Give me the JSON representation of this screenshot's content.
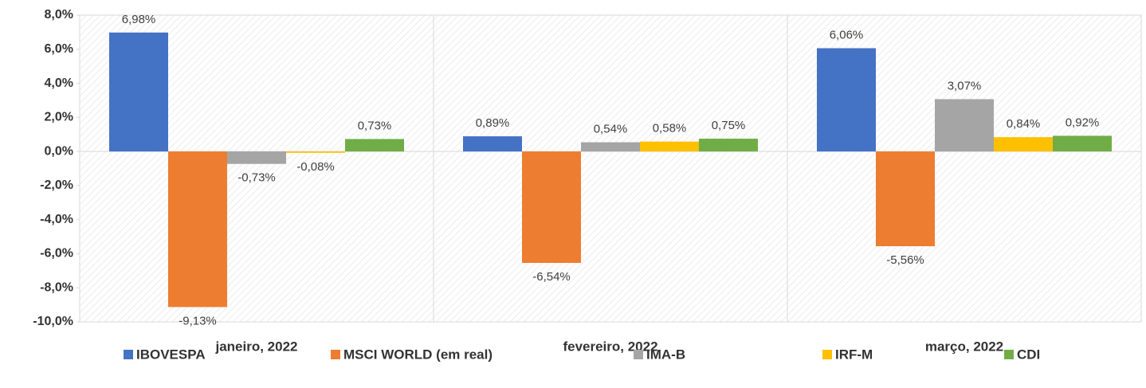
{
  "chart_data": {
    "type": "bar",
    "categories": [
      "janeiro, 2022",
      "fevereiro, 2022",
      "março, 2022"
    ],
    "series": [
      {
        "name": "IBOVESPA",
        "color": "#4472c4",
        "values": [
          6.98,
          0.89,
          6.06
        ],
        "value_labels": [
          "6,98%",
          "0,89%",
          "6,06%"
        ]
      },
      {
        "name": "MSCI WORLD (em real)",
        "color": "#ed7d31",
        "values": [
          -9.13,
          -6.54,
          -5.56
        ],
        "value_labels": [
          "-9,13%",
          "-6,54%",
          "-5,56%"
        ]
      },
      {
        "name": "IMA-B",
        "color": "#a5a5a5",
        "values": [
          -0.73,
          0.54,
          3.07
        ],
        "value_labels": [
          "-0,73%",
          "0,54%",
          "3,07%"
        ]
      },
      {
        "name": "IRF-M",
        "color": "#ffc000",
        "values": [
          -0.08,
          0.58,
          0.84
        ],
        "value_labels": [
          "-0,08%",
          "0,58%",
          "0,84%"
        ]
      },
      {
        "name": "CDI",
        "color": "#70ad47",
        "values": [
          0.73,
          0.75,
          0.92
        ],
        "value_labels": [
          "0,73%",
          "0,75%",
          "0,92%"
        ]
      }
    ],
    "ylim": [
      -10,
      8
    ],
    "yticks": [
      {
        "value": -10,
        "label": "-10,0%"
      },
      {
        "value": -8,
        "label": "-8,0%"
      },
      {
        "value": -6,
        "label": "-6,0%"
      },
      {
        "value": -4,
        "label": "-4,0%"
      },
      {
        "value": -2,
        "label": "-2,0%"
      },
      {
        "value": 0,
        "label": "0,0%"
      },
      {
        "value": 2,
        "label": "2,0%"
      },
      {
        "value": 4,
        "label": "4,0%"
      },
      {
        "value": 6,
        "label": "6,0%"
      },
      {
        "value": 8,
        "label": "8,0%"
      }
    ],
    "legend": "bottom"
  }
}
